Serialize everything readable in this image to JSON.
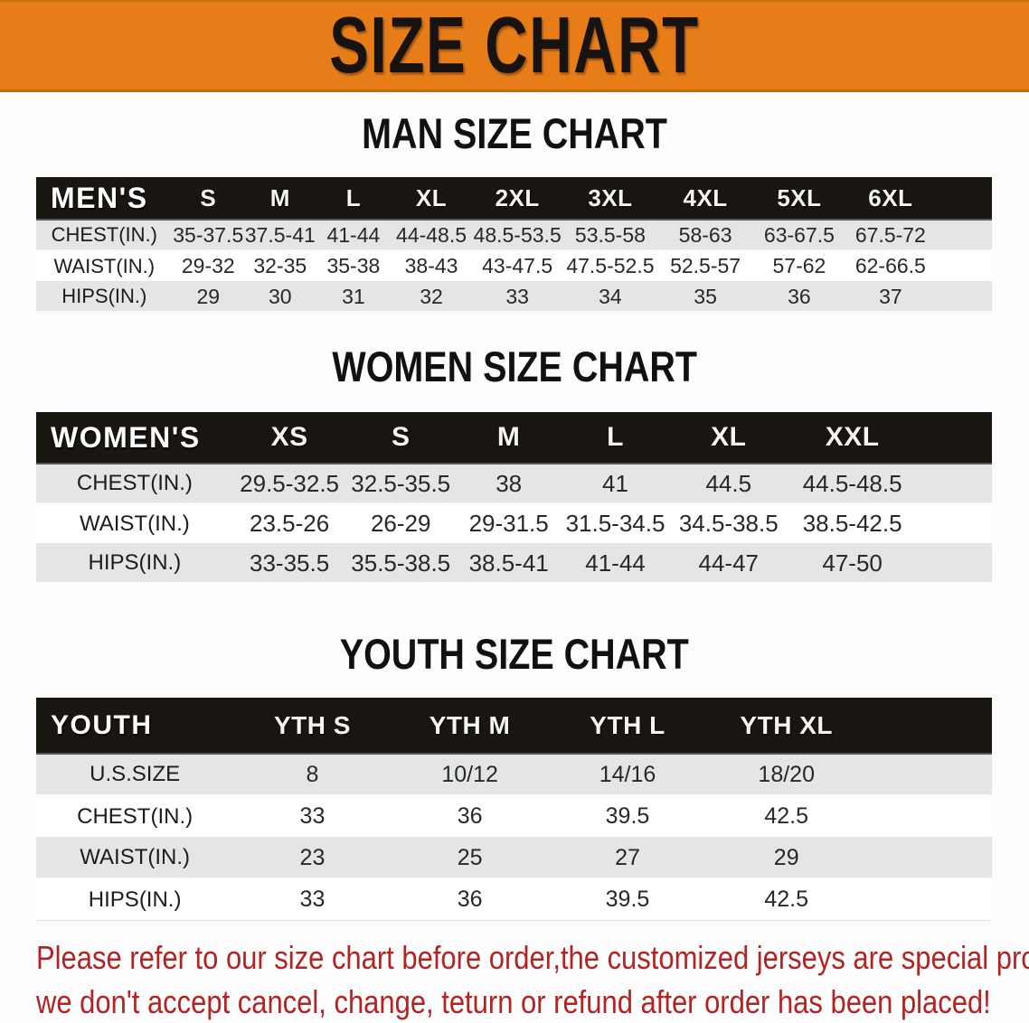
{
  "banner": {
    "title": "SIZE CHART"
  },
  "colors": {
    "banner_bg": "#E67D18",
    "header_bar": "#191510",
    "row_shaded": "#E3E5E6",
    "heading_text": "#111111",
    "disclaimer_text": "#B32323"
  },
  "tables": [
    {
      "id": "mens",
      "heading": "MAN SIZE CHART",
      "corner": "MEN'S",
      "columns": [
        "S",
        "M",
        "L",
        "XL",
        "2XL",
        "3XL",
        "4XL",
        "5XL",
        "6XL"
      ],
      "rows": [
        {
          "label": "CHEST(IN.)",
          "shaded": true,
          "values": [
            "35-37.5",
            "37.5-41",
            "41-44",
            "44-48.5",
            "48.5-53.5",
            "53.5-58",
            "58-63",
            "63-67.5",
            "67.5-72"
          ]
        },
        {
          "label": "WAIST(IN.)",
          "shaded": false,
          "values": [
            "29-32",
            "32-35",
            "35-38",
            "38-43",
            "43-47.5",
            "47.5-52.5",
            "52.5-57",
            "57-62",
            "62-66.5"
          ]
        },
        {
          "label": "HIPS(IN.)",
          "shaded": true,
          "values": [
            "29",
            "30",
            "31",
            "32",
            "33",
            "34",
            "35",
            "36",
            "37"
          ]
        }
      ]
    },
    {
      "id": "womens",
      "heading": "WOMEN SIZE CHART",
      "corner": "WOMEN'S",
      "columns": [
        "XS",
        "S",
        "M",
        "L",
        "XL",
        "XXL"
      ],
      "rows": [
        {
          "label": "CHEST(IN.)",
          "shaded": true,
          "values": [
            "29.5-32.5",
            "32.5-35.5",
            "38",
            "41",
            "44.5",
            "44.5-48.5"
          ]
        },
        {
          "label": "WAIST(IN.)",
          "shaded": false,
          "values": [
            "23.5-26",
            "26-29",
            "29-31.5",
            "31.5-34.5",
            "34.5-38.5",
            "38.5-42.5"
          ]
        },
        {
          "label": "HIPS(IN.)",
          "shaded": true,
          "values": [
            "33-35.5",
            "35.5-38.5",
            "38.5-41",
            "41-44",
            "44-47",
            "47-50"
          ]
        }
      ]
    },
    {
      "id": "youth",
      "heading": "YOUTH SIZE CHART",
      "corner": "YOUTH",
      "columns": [
        "YTH S",
        "YTH M",
        "YTH L",
        "YTH XL"
      ],
      "rows": [
        {
          "label": "U.S.SIZE",
          "shaded": true,
          "values": [
            "8",
            "10/12",
            "14/16",
            "18/20"
          ]
        },
        {
          "label": "CHEST(IN.)",
          "shaded": false,
          "values": [
            "33",
            "36",
            "39.5",
            "42.5"
          ]
        },
        {
          "label": "WAIST(IN.)",
          "shaded": true,
          "values": [
            "23",
            "25",
            "27",
            "29"
          ]
        },
        {
          "label": "HIPS(IN.)",
          "shaded": false,
          "values": [
            "33",
            "36",
            "39.5",
            "42.5"
          ]
        }
      ]
    }
  ],
  "disclaimer": {
    "line1": "Please refer to our size chart before order,the customized jerseys are special products,",
    "line2": "we don't accept cancel, change, teturn or refund after order has been placed!"
  }
}
